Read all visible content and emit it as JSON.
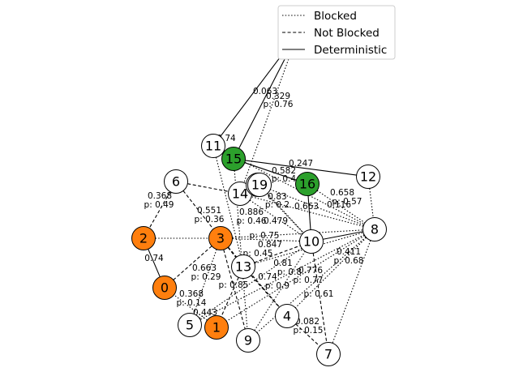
{
  "legend": {
    "blocked_label": "Blocked",
    "not_blocked_label": "Not Blocked",
    "deterministic_label": "Deterministic"
  },
  "colors": {
    "orange": "#ff7f0e",
    "green": "#2ca02c",
    "white": "#ffffff"
  },
  "nodes": [
    {
      "id": "0",
      "color": "orange"
    },
    {
      "id": "1",
      "color": "orange"
    },
    {
      "id": "2",
      "color": "orange"
    },
    {
      "id": "3",
      "color": "orange"
    },
    {
      "id": "4",
      "color": "white"
    },
    {
      "id": "5",
      "color": "white"
    },
    {
      "id": "6",
      "color": "white"
    },
    {
      "id": "7",
      "color": "white"
    },
    {
      "id": "8",
      "color": "white"
    },
    {
      "id": "9",
      "color": "white"
    },
    {
      "id": "10",
      "color": "white"
    },
    {
      "id": "11",
      "color": "white"
    },
    {
      "id": "12",
      "color": "white"
    },
    {
      "id": "13",
      "color": "white"
    },
    {
      "id": "14",
      "color": "white"
    },
    {
      "id": "15",
      "color": "green"
    },
    {
      "id": "16",
      "color": "green"
    },
    {
      "id": "17",
      "color": "green"
    },
    {
      "id": "18",
      "color": "white"
    },
    {
      "id": "19",
      "color": "white"
    }
  ],
  "edges": [
    {
      "from": "17",
      "to": "15",
      "type": "deterministic",
      "label": ""
    },
    {
      "from": "17",
      "to": "11",
      "type": "deterministic",
      "label": ""
    },
    {
      "from": "17",
      "to": "14",
      "type": "blocked",
      "label": ""
    },
    {
      "from": "15",
      "to": "16",
      "type": "deterministic",
      "label": ""
    },
    {
      "from": "15",
      "to": "12",
      "type": "deterministic",
      "label": ""
    },
    {
      "from": "16",
      "to": "10",
      "type": "deterministic",
      "label": ""
    },
    {
      "from": "16",
      "to": "8",
      "type": "blocked",
      "label": ""
    },
    {
      "from": "12",
      "to": "8",
      "type": "blocked",
      "label": ""
    },
    {
      "from": "10",
      "to": "8",
      "type": "deterministic",
      "label": ""
    },
    {
      "from": "2",
      "to": "0",
      "type": "deterministic",
      "label": ""
    },
    {
      "from": "6",
      "to": "2",
      "type": "notblocked",
      "label": ""
    },
    {
      "from": "6",
      "to": "14",
      "type": "notblocked",
      "label": ""
    },
    {
      "from": "6",
      "to": "3",
      "type": "notblocked",
      "label": ""
    },
    {
      "from": "2",
      "to": "3",
      "type": "blocked",
      "label": ""
    },
    {
      "from": "3",
      "to": "13",
      "type": "notblocked",
      "label": ""
    },
    {
      "from": "3",
      "to": "0",
      "type": "notblocked",
      "label": ""
    },
    {
      "from": "3",
      "to": "9",
      "type": "notblocked",
      "label": ""
    },
    {
      "from": "3",
      "to": "5",
      "type": "blocked",
      "label": ""
    },
    {
      "from": "3",
      "to": "4",
      "type": "notblocked",
      "label": ""
    },
    {
      "from": "3",
      "to": "8",
      "type": "blocked",
      "label": ""
    },
    {
      "from": "3",
      "to": "10",
      "type": "blocked",
      "label": ""
    },
    {
      "from": "13",
      "to": "10",
      "type": "notblocked",
      "label": ""
    },
    {
      "from": "13",
      "to": "8",
      "type": "blocked",
      "label": ""
    },
    {
      "from": "13",
      "to": "4",
      "type": "notblocked",
      "label": ""
    },
    {
      "from": "13",
      "to": "1",
      "type": "notblocked",
      "label": ""
    },
    {
      "from": "4",
      "to": "7",
      "type": "notblocked",
      "label": ""
    },
    {
      "from": "10",
      "to": "7",
      "type": "notblocked",
      "label": ""
    },
    {
      "from": "8",
      "to": "7",
      "type": "blocked",
      "label": ""
    },
    {
      "from": "8",
      "to": "9",
      "type": "blocked",
      "label": ""
    },
    {
      "from": "8",
      "to": "4",
      "type": "blocked",
      "label": ""
    },
    {
      "from": "8",
      "to": "14",
      "type": "blocked",
      "label": ""
    },
    {
      "from": "8",
      "to": "1",
      "type": "blocked",
      "label": ""
    },
    {
      "from": "8",
      "to": "5",
      "type": "blocked",
      "label": ""
    },
    {
      "from": "8",
      "to": "18",
      "type": "blocked",
      "label": ""
    },
    {
      "from": "9",
      "to": "10",
      "type": "blocked",
      "label": ""
    },
    {
      "from": "5",
      "to": "10",
      "type": "blocked",
      "label": ""
    },
    {
      "from": "14",
      "to": "10",
      "type": "blocked",
      "label": ""
    },
    {
      "from": "18",
      "to": "10",
      "type": "blocked",
      "label": ""
    },
    {
      "from": "19",
      "to": "10",
      "type": "blocked",
      "label": ""
    },
    {
      "from": "11",
      "to": "8",
      "type": "blocked",
      "label": ""
    },
    {
      "from": "11",
      "to": "13",
      "type": "blocked",
      "label": ""
    },
    {
      "from": "15",
      "to": "9",
      "type": "blocked",
      "label": ""
    },
    {
      "from": "1",
      "to": "0",
      "type": "blocked",
      "label": ""
    }
  ],
  "edge_labels": [
    {
      "text": "0.063",
      "near": "17-15"
    },
    {
      "text": "0.329",
      "near": "17-15"
    },
    {
      "text": "p: 0.76",
      "near": "17-15"
    },
    {
      "text": "0.74",
      "near": "11-15"
    },
    {
      "text": "0.247",
      "near": "15-12"
    },
    {
      "text": "0.582",
      "near": "15-16"
    },
    {
      "text": "p: 0.4",
      "near": "15-16"
    },
    {
      "text": "0.658",
      "near": "16-8"
    },
    {
      "text": "p: 0.57",
      "near": "16-8"
    },
    {
      "text": "0.116",
      "near": "16-8"
    },
    {
      "text": "0.663",
      "near": "14-8"
    },
    {
      "text": "0.83",
      "near": "14-16"
    },
    {
      "text": "p: 0.2",
      "near": "14-16"
    },
    {
      "text": "0.479",
      "near": "3-16"
    },
    {
      "text": "0.368",
      "near": "6-2"
    },
    {
      "text": "p: 0.49",
      "near": "6-2"
    },
    {
      "text": "0.551",
      "near": "6-3"
    },
    {
      "text": "p: 0.36",
      "near": "6-3"
    },
    {
      "text": "0.886",
      "near": "3-8"
    },
    {
      "text": "p: 0.46",
      "near": "3-8"
    },
    {
      "text": "p: 0.75",
      "near": "3-10"
    },
    {
      "text": "0.847",
      "near": "13-10"
    },
    {
      "text": "p: 0.45",
      "near": "13-10"
    },
    {
      "text": "0.81",
      "near": "13-8"
    },
    {
      "text": "p: 0.8",
      "near": "13-8"
    },
    {
      "text": "0.776",
      "near": "10-7"
    },
    {
      "text": "p: 0.77",
      "near": "10-7"
    },
    {
      "text": "p: 0.61",
      "near": "10-7"
    },
    {
      "text": "0.411",
      "near": "8-7"
    },
    {
      "text": "p: 0.68",
      "near": "8-7"
    },
    {
      "text": "0.74",
      "near": "2-0"
    },
    {
      "text": "0.663",
      "near": "3-0"
    },
    {
      "text": "p: 0.29",
      "near": "3-0"
    },
    {
      "text": "p: 0.85",
      "near": "3-9"
    },
    {
      "text": "0.74",
      "near": "13-4"
    },
    {
      "text": "p: 0.9",
      "near": "13-4"
    },
    {
      "text": "0.368",
      "near": "3-5"
    },
    {
      "text": "p: 0.14",
      "near": "3-5"
    },
    {
      "text": "0.443",
      "near": "0-5"
    },
    {
      "text": "0.082",
      "near": "4-7"
    },
    {
      "text": "p: 0.15",
      "near": "4-7"
    }
  ]
}
